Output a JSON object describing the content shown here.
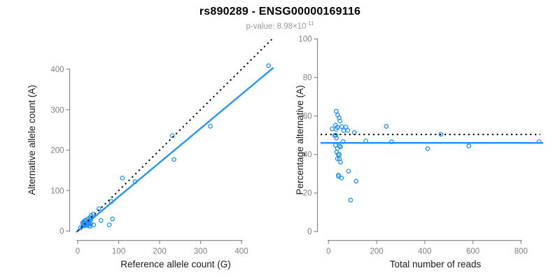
{
  "header": {
    "title": "rs890289 - ENSG00000169116",
    "pvalue_prefix": "p-value: 8.98×10",
    "pvalue_exponent": "-11"
  },
  "colors": {
    "accent": "#1e90ff",
    "identity": "#000000",
    "axis": "#8a8a8a",
    "tick_label": "#808080",
    "axis_label": "#1a1a1a",
    "title": "#000000",
    "subtitle": "#999999",
    "background": "#ffffff"
  },
  "chart_data": [
    {
      "type": "scatter",
      "name": "allele-counts-scatter",
      "xlabel": "Reference allele count (G)",
      "ylabel": "Alternative allele count (A)",
      "xticks": [
        0,
        100,
        200,
        300,
        400
      ],
      "yticks": [
        0,
        100,
        200,
        300,
        400
      ],
      "xlim": [
        0,
        480
      ],
      "ylim": [
        0,
        480
      ],
      "grid": false,
      "legend": "none",
      "lines": [
        {
          "name": "regression-line",
          "style": "solid",
          "color": "#1e90ff",
          "x1": -4,
          "y1": -3,
          "x2": 478,
          "y2": 404
        },
        {
          "name": "identity-line",
          "style": "dotted",
          "color": "#000000",
          "x1": 0,
          "y1": 0,
          "x2": 478,
          "y2": 478
        }
      ],
      "points": [
        [
          12,
          20
        ],
        [
          15,
          23
        ],
        [
          18,
          26
        ],
        [
          13,
          16
        ],
        [
          17,
          20
        ],
        [
          20,
          27
        ],
        [
          7,
          8
        ],
        [
          15,
          17
        ],
        [
          25,
          30
        ],
        [
          30,
          33
        ],
        [
          33,
          39
        ],
        [
          38,
          42
        ],
        [
          52,
          55
        ],
        [
          13,
          13
        ],
        [
          15,
          15
        ],
        [
          17,
          16
        ],
        [
          32,
          28
        ],
        [
          25,
          20
        ],
        [
          28,
          22
        ],
        [
          16,
          13
        ],
        [
          21,
          16
        ],
        [
          20,
          14
        ],
        [
          24,
          16
        ],
        [
          27,
          18
        ],
        [
          23,
          14
        ],
        [
          28,
          17
        ],
        [
          32,
          18
        ],
        [
          57,
          26
        ],
        [
          29,
          12
        ],
        [
          30,
          12
        ],
        [
          39,
          15
        ],
        [
          85,
          30
        ],
        [
          77,
          15
        ],
        [
          82,
          73
        ],
        [
          109,
          131
        ],
        [
          140,
          122
        ],
        [
          235,
          177
        ],
        [
          231,
          236
        ],
        [
          324,
          259
        ],
        [
          466,
          409
        ]
      ]
    },
    {
      "type": "scatter",
      "name": "percentage-vs-reads-scatter",
      "xlabel": "Total number of reads",
      "ylabel": "Percentage alternative (A)",
      "xticks": [
        0,
        200,
        400,
        600,
        800
      ],
      "yticks": [
        0,
        20,
        40,
        60,
        80,
        100
      ],
      "xlim": [
        0,
        910
      ],
      "ylim": [
        0,
        100
      ],
      "grid": false,
      "legend": "none",
      "lines": [
        {
          "name": "fitted-percentage-line",
          "style": "solid",
          "color": "#1e90ff",
          "x1": -33,
          "y1": 46,
          "x2": 892,
          "y2": 46
        },
        {
          "name": "expected-percentage-line",
          "style": "dotted",
          "color": "#000000",
          "x1": -33,
          "y1": 50.4,
          "x2": 880,
          "y2": 50.4
        }
      ],
      "points": [
        [
          32,
          62.5
        ],
        [
          38,
          60.5
        ],
        [
          44,
          59.1
        ],
        [
          29,
          55.2
        ],
        [
          37,
          54.1
        ],
        [
          47,
          57.4
        ],
        [
          15,
          53.3
        ],
        [
          32,
          53.1
        ],
        [
          55,
          54.5
        ],
        [
          63,
          52.4
        ],
        [
          72,
          54.2
        ],
        [
          80,
          52.5
        ],
        [
          107,
          51.4
        ],
        [
          26,
          50
        ],
        [
          30,
          50
        ],
        [
          33,
          48.5
        ],
        [
          60,
          46.7
        ],
        [
          45,
          44.4
        ],
        [
          50,
          44
        ],
        [
          29,
          44.8
        ],
        [
          37,
          43.2
        ],
        [
          34,
          41.2
        ],
        [
          40,
          40
        ],
        [
          45,
          40
        ],
        [
          37,
          37.8
        ],
        [
          45,
          37.8
        ],
        [
          50,
          36
        ],
        [
          83,
          31.3
        ],
        [
          41,
          29.3
        ],
        [
          42,
          28.6
        ],
        [
          54,
          27.8
        ],
        [
          115,
          26.1
        ],
        [
          92,
          16.3
        ],
        [
          155,
          47.1
        ],
        [
          240,
          54.6
        ],
        [
          262,
          46.6
        ],
        [
          412,
          43
        ],
        [
          467,
          50.5
        ],
        [
          583,
          44.4
        ],
        [
          875,
          46.7
        ]
      ]
    }
  ]
}
